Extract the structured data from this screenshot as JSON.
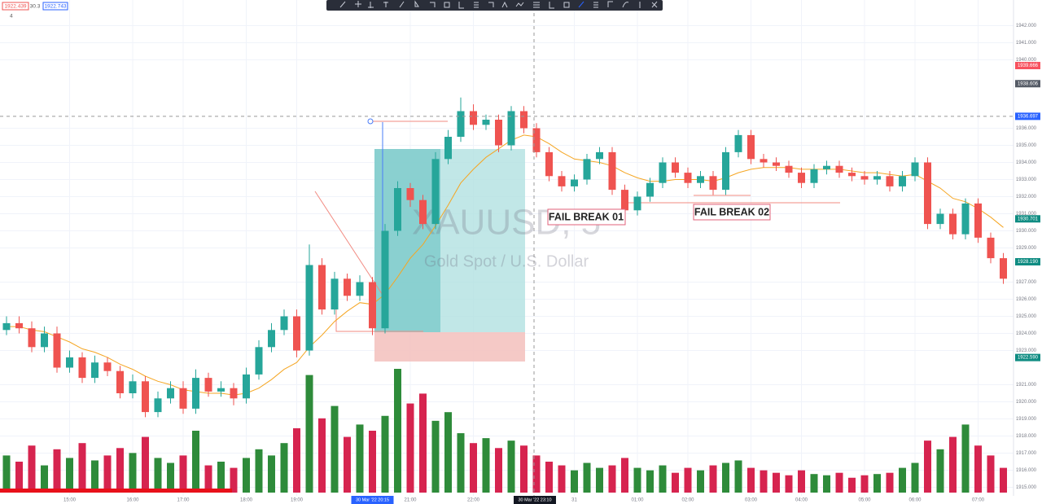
{
  "chart_data": {
    "type": "candlestick",
    "watermark_title": "XAUUSD, 5",
    "watermark_subtitle": "Gold Spot / U.S. Dollar",
    "ohlc_info": [
      "1922.439",
      "30.3",
      "1922.743"
    ],
    "indicator_count": "4",
    "annotations": [
      "FAIL BREAK 01",
      "FAIL BREAK 02"
    ],
    "crosshair_labels": [
      "30 Mar '22  20:15",
      "30 Mar '22  23:10"
    ],
    "categories": [
      null,
      null,
      null,
      null,
      null,
      "15:00",
      null,
      null,
      null,
      null,
      "16:00",
      null,
      null,
      null,
      "17:00",
      null,
      null,
      null,
      null,
      "18:00",
      null,
      null,
      null,
      "19:00",
      null,
      null,
      null,
      null,
      null,
      null,
      null,
      null,
      "21:00",
      null,
      null,
      null,
      null,
      "22:00",
      null,
      null,
      null,
      null,
      null,
      null,
      null,
      "31",
      null,
      null,
      null,
      null,
      "01:00",
      null,
      null,
      null,
      "02:00",
      null,
      null,
      null,
      null,
      "03:00",
      null,
      null,
      null,
      "04:00",
      null,
      null,
      null,
      null,
      "05:00",
      null,
      null,
      null,
      "06:00",
      null,
      null,
      null,
      null,
      "07:00",
      null,
      null
    ],
    "open": [
      1924.2,
      1924.6,
      1924.3,
      1923.2,
      1924.0,
      1922.0,
      1922.6,
      1921.4,
      1922.3,
      1921.8,
      1920.5,
      1921.2,
      1919.4,
      1920.2,
      1920.8,
      1919.6,
      1921.4,
      1920.6,
      1920.8,
      1920.2,
      1921.6,
      1923.2,
      1924.2,
      1925.0,
      1923.0,
      1928.0,
      1925.4,
      1927.2,
      1926.2,
      1927.0,
      1924.3,
      1930.0,
      1932.5,
      1931.8,
      1930.4,
      1934.2,
      1935.5,
      1937.0,
      1936.2,
      1936.5,
      1935.0,
      1937.0,
      1936.0,
      1934.6,
      1933.2,
      1932.6,
      1933.0,
      1934.2,
      1934.6,
      1932.4,
      1931.2,
      1932.0,
      1932.8,
      1934.0,
      1933.4,
      1932.8,
      1933.2,
      1932.4,
      1934.6,
      1935.6,
      1934.2,
      1934.0,
      1933.8,
      1933.4,
      1932.8,
      1933.6,
      1933.8,
      1933.4,
      1933.2,
      1933.0,
      1933.2,
      1932.6,
      1933.2,
      1934.0,
      1930.4,
      1931.0,
      1929.8,
      1931.6,
      1929.6,
      1928.4
    ],
    "high": [
      1925.0,
      1925.0,
      1924.7,
      1924.4,
      1924.4,
      1923.0,
      1922.9,
      1922.7,
      1922.6,
      1922.1,
      1921.6,
      1921.5,
      1920.6,
      1921.2,
      1921.2,
      1921.9,
      1921.7,
      1921.2,
      1921.1,
      1922.0,
      1923.6,
      1924.6,
      1925.4,
      1925.4,
      1929.2,
      1928.4,
      1927.6,
      1927.5,
      1927.4,
      1927.3,
      1930.4,
      1932.9,
      1932.8,
      1932.1,
      1934.6,
      1935.9,
      1937.8,
      1937.4,
      1936.8,
      1936.8,
      1937.3,
      1937.3,
      1936.3,
      1934.9,
      1933.5,
      1933.3,
      1934.5,
      1934.9,
      1934.9,
      1932.7,
      1932.3,
      1933.1,
      1934.3,
      1934.3,
      1933.7,
      1933.5,
      1933.5,
      1934.9,
      1935.9,
      1935.9,
      1934.5,
      1934.3,
      1934.1,
      1933.7,
      1933.9,
      1934.1,
      1934.1,
      1933.7,
      1933.5,
      1933.5,
      1933.5,
      1933.5,
      1934.3,
      1934.3,
      1931.3,
      1931.3,
      1931.9,
      1931.9,
      1929.9,
      1928.7
    ],
    "low": [
      1923.9,
      1924.0,
      1922.9,
      1922.9,
      1921.7,
      1921.7,
      1921.1,
      1921.1,
      1921.5,
      1920.2,
      1920.2,
      1919.1,
      1919.1,
      1919.9,
      1919.3,
      1919.3,
      1920.3,
      1920.3,
      1919.8,
      1919.9,
      1921.3,
      1922.9,
      1923.9,
      1922.6,
      1922.7,
      1925.1,
      1925.1,
      1925.9,
      1925.9,
      1923.9,
      1924.0,
      1929.7,
      1931.4,
      1930.1,
      1930.1,
      1933.9,
      1935.2,
      1935.9,
      1935.9,
      1934.6,
      1934.7,
      1935.7,
      1934.3,
      1932.9,
      1932.3,
      1932.3,
      1932.7,
      1933.9,
      1932.1,
      1930.9,
      1930.9,
      1931.7,
      1932.5,
      1933.1,
      1932.5,
      1932.5,
      1932.1,
      1932.1,
      1934.3,
      1933.9,
      1933.7,
      1933.5,
      1933.1,
      1932.5,
      1932.5,
      1933.3,
      1933.1,
      1932.9,
      1932.7,
      1932.7,
      1932.3,
      1932.3,
      1932.9,
      1930.1,
      1930.1,
      1929.5,
      1929.5,
      1929.3,
      1928.1,
      1926.9
    ],
    "close": [
      1924.6,
      1924.3,
      1923.2,
      1924.0,
      1922.0,
      1922.6,
      1921.4,
      1922.3,
      1921.8,
      1920.5,
      1921.2,
      1919.4,
      1920.2,
      1920.8,
      1919.6,
      1921.4,
      1920.6,
      1920.8,
      1920.2,
      1921.6,
      1923.2,
      1924.2,
      1925.0,
      1923.0,
      1928.0,
      1925.4,
      1927.2,
      1926.2,
      1927.0,
      1924.3,
      1930.0,
      1932.5,
      1931.8,
      1930.4,
      1934.2,
      1935.5,
      1937.0,
      1936.2,
      1936.5,
      1935.0,
      1937.0,
      1936.0,
      1934.6,
      1933.2,
      1932.6,
      1933.0,
      1934.2,
      1934.6,
      1932.4,
      1931.2,
      1932.0,
      1932.8,
      1934.0,
      1933.4,
      1932.8,
      1933.2,
      1932.4,
      1934.6,
      1935.6,
      1934.2,
      1934.0,
      1933.8,
      1933.4,
      1932.8,
      1933.6,
      1933.8,
      1933.4,
      1933.2,
      1933.0,
      1933.2,
      1932.6,
      1933.2,
      1934.0,
      1930.4,
      1931.0,
      1929.8,
      1931.6,
      1929.6,
      1928.4,
      1927.2
    ],
    "volume": [
      30,
      25,
      38,
      22,
      35,
      28,
      40,
      26,
      30,
      36,
      32,
      45,
      28,
      24,
      30,
      50,
      22,
      25,
      20,
      28,
      35,
      30,
      40,
      52,
      95,
      60,
      70,
      45,
      55,
      50,
      62,
      100,
      72,
      80,
      58,
      65,
      48,
      40,
      44,
      36,
      42,
      38,
      30,
      25,
      22,
      18,
      24,
      20,
      22,
      28,
      20,
      18,
      22,
      16,
      20,
      18,
      22,
      24,
      26,
      20,
      18,
      16,
      14,
      18,
      15,
      14,
      16,
      12,
      14,
      15,
      16,
      20,
      24,
      42,
      35,
      45,
      55,
      38,
      30,
      20
    ],
    "volume_max": 100,
    "ma": {
      "color": "#f5a623",
      "values": [
        1924.4,
        1924.4,
        1924.2,
        1924.1,
        1923.8,
        1923.5,
        1923.1,
        1922.9,
        1922.6,
        1922.2,
        1921.9,
        1921.5,
        1921.2,
        1921.0,
        1920.7,
        1920.6,
        1920.5,
        1920.5,
        1920.4,
        1920.5,
        1920.8,
        1921.3,
        1921.9,
        1922.3,
        1923.2,
        1923.9,
        1924.7,
        1925.3,
        1925.8,
        1925.7,
        1926.3,
        1927.3,
        1928.4,
        1929.2,
        1930.3,
        1931.5,
        1932.8,
        1933.6,
        1934.3,
        1934.8,
        1935.3,
        1935.6,
        1935.5,
        1935.1,
        1934.6,
        1934.2,
        1934.1,
        1934.0,
        1933.8,
        1933.4,
        1933.1,
        1932.9,
        1932.9,
        1933.0,
        1933.0,
        1933.0,
        1932.9,
        1933.1,
        1933.4,
        1933.6,
        1933.7,
        1933.7,
        1933.7,
        1933.6,
        1933.6,
        1933.6,
        1933.6,
        1933.5,
        1933.4,
        1933.4,
        1933.3,
        1933.2,
        1933.3,
        1932.9,
        1932.5,
        1931.9,
        1931.7,
        1931.3,
        1930.8,
        1930.2
      ]
    },
    "up_color": "#26a69a",
    "down_color": "#ef5350",
    "volume_up_color": "#2e8b3a",
    "volume_down_color": "#d6244f",
    "ylim": [
      1914.5,
      1943.5
    ],
    "yticks": [
      {
        "value": 1915,
        "label": "1915.000"
      },
      {
        "value": 1916,
        "label": "1916.000"
      },
      {
        "value": 1917,
        "label": "1917.000"
      },
      {
        "value": 1918,
        "label": "1918.000"
      },
      {
        "value": 1919,
        "label": "1919.000"
      },
      {
        "value": 1920,
        "label": "1920.000"
      },
      {
        "value": 1921,
        "label": "1921.000"
      },
      {
        "value": 1923,
        "label": "1923.000"
      },
      {
        "value": 1924,
        "label": "1924.000"
      },
      {
        "value": 1925,
        "label": "1925.000"
      },
      {
        "value": 1926,
        "label": "1926.000"
      },
      {
        "value": 1927,
        "label": "1927.000"
      },
      {
        "value": 1929,
        "label": "1929.000"
      },
      {
        "value": 1930,
        "label": "1930.000"
      },
      {
        "value": 1931,
        "label": "1931.000"
      },
      {
        "value": 1932,
        "label": "1932.000"
      },
      {
        "value": 1933,
        "label": "1933.000"
      },
      {
        "value": 1934,
        "label": "1934.000"
      },
      {
        "value": 1935,
        "label": "1935.000"
      },
      {
        "value": 1936,
        "label": "1936.000"
      },
      {
        "value": 1940,
        "label": "1940.000"
      },
      {
        "value": 1941,
        "label": "1941.000"
      },
      {
        "value": 1942,
        "label": "1942.000"
      }
    ],
    "grid": true,
    "price_tags": [
      {
        "value": 1939.666,
        "label": "1939.666",
        "color": "#f7525f"
      },
      {
        "value": 1938.606,
        "label": "1938.606",
        "color": "#555b66"
      },
      {
        "value": 1936.697,
        "label": "1936.697",
        "color": "#2962ff"
      },
      {
        "value": 1930.701,
        "label": "1930.701",
        "color": "#0f8c82"
      },
      {
        "value": 1928.19,
        "label": "1928.190",
        "color": "#0f8c82"
      },
      {
        "value": 1922.59,
        "label": "1922.590",
        "color": "#0f8c82"
      }
    ]
  }
}
